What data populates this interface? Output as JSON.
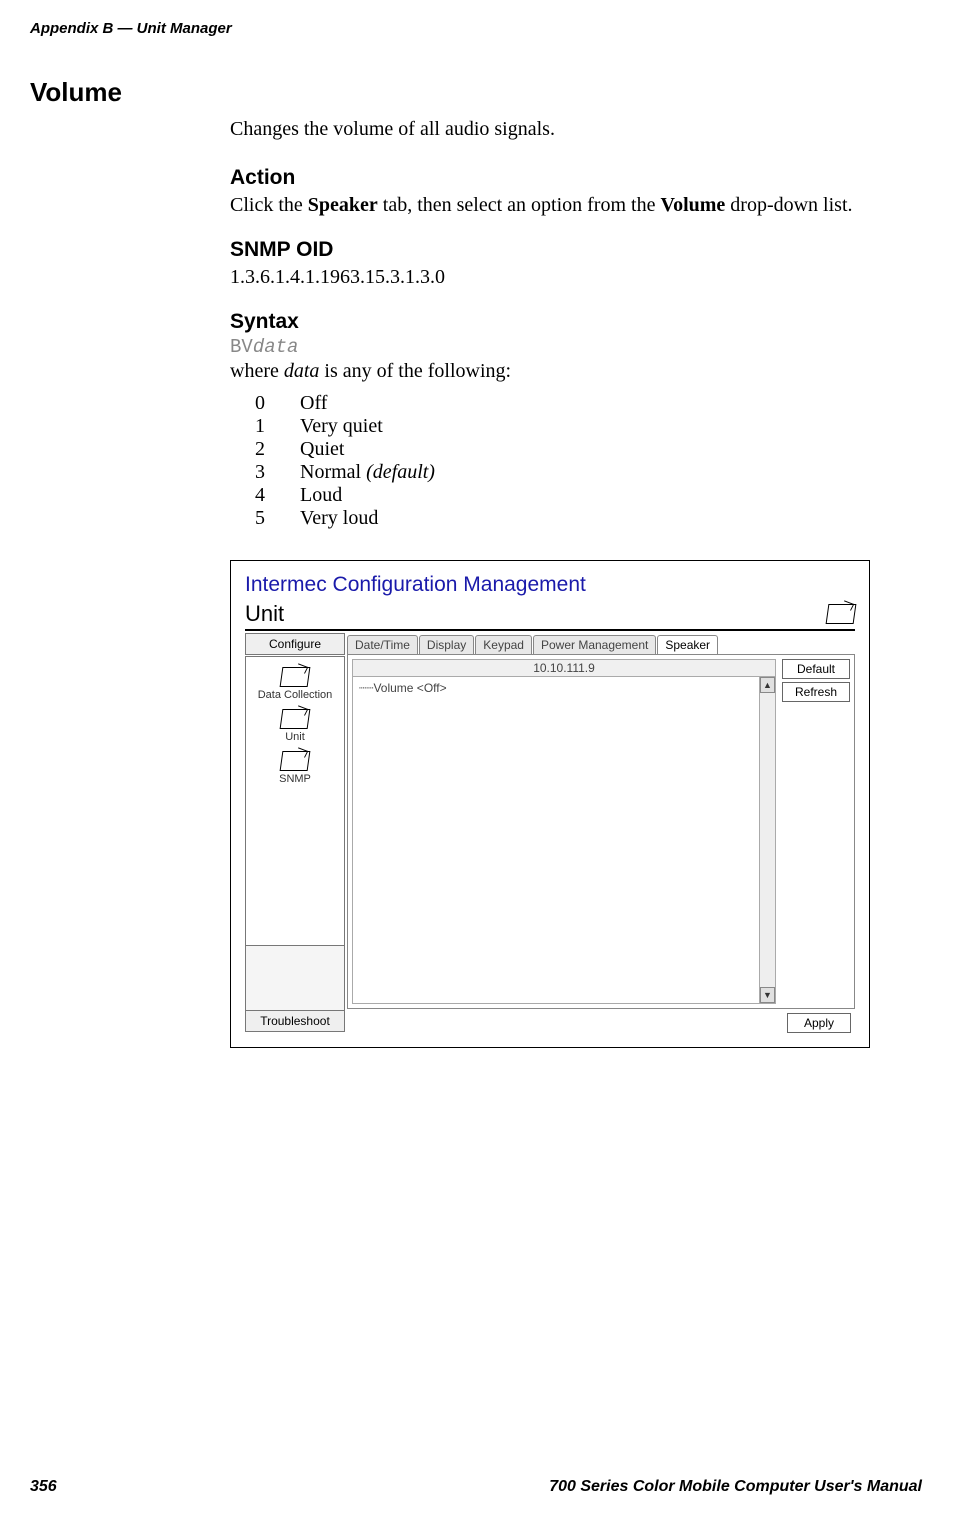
{
  "header": {
    "running_head": "Appendix  B    —   Unit Manager"
  },
  "section": {
    "title": "Volume",
    "intro": "Changes the volume of all audio signals.",
    "action": {
      "heading": "Action",
      "pre": "Click the ",
      "bold1": "Speaker",
      "mid": " tab, then select an option from the ",
      "bold2": "Volume",
      "post": " drop-down list."
    },
    "snmp": {
      "heading": "SNMP OID",
      "value": "1.3.6.1.4.1.1963.15.3.1.3.0"
    },
    "syntax": {
      "heading": "Syntax",
      "code_prefix": "BV",
      "code_suffix": "data",
      "where_pre": "where ",
      "where_ital": "data",
      "where_post": " is any of the following:",
      "values": [
        {
          "k": "0",
          "v": "Off",
          "ital": ""
        },
        {
          "k": "1",
          "v": "Very quiet",
          "ital": ""
        },
        {
          "k": "2",
          "v": "Quiet",
          "ital": ""
        },
        {
          "k": "3",
          "v": "Normal ",
          "ital": "(default)"
        },
        {
          "k": "4",
          "v": "Loud",
          "ital": ""
        },
        {
          "k": "5",
          "v": "Very loud",
          "ital": ""
        }
      ]
    }
  },
  "fig": {
    "title": "Intermec Configuration Management",
    "unit_label": "Unit",
    "sidebar": {
      "top_btn": "Configure",
      "items": [
        {
          "label": "Data Collection"
        },
        {
          "label": "Unit"
        },
        {
          "label": "SNMP"
        }
      ],
      "bottom_btn": "Troubleshoot"
    },
    "tabs": [
      {
        "label": "Date/Time",
        "active": false
      },
      {
        "label": "Display",
        "active": false
      },
      {
        "label": "Keypad",
        "active": false
      },
      {
        "label": "Power Management",
        "active": false
      },
      {
        "label": "Speaker",
        "active": true
      }
    ],
    "ip": "10.10.111.9",
    "tree_row": "┈┈Volume   <Off>",
    "buttons": {
      "default": "Default",
      "refresh": "Refresh",
      "apply": "Apply"
    }
  },
  "footer": {
    "page": "356",
    "title": "700 Series Color Mobile Computer User's Manual"
  }
}
